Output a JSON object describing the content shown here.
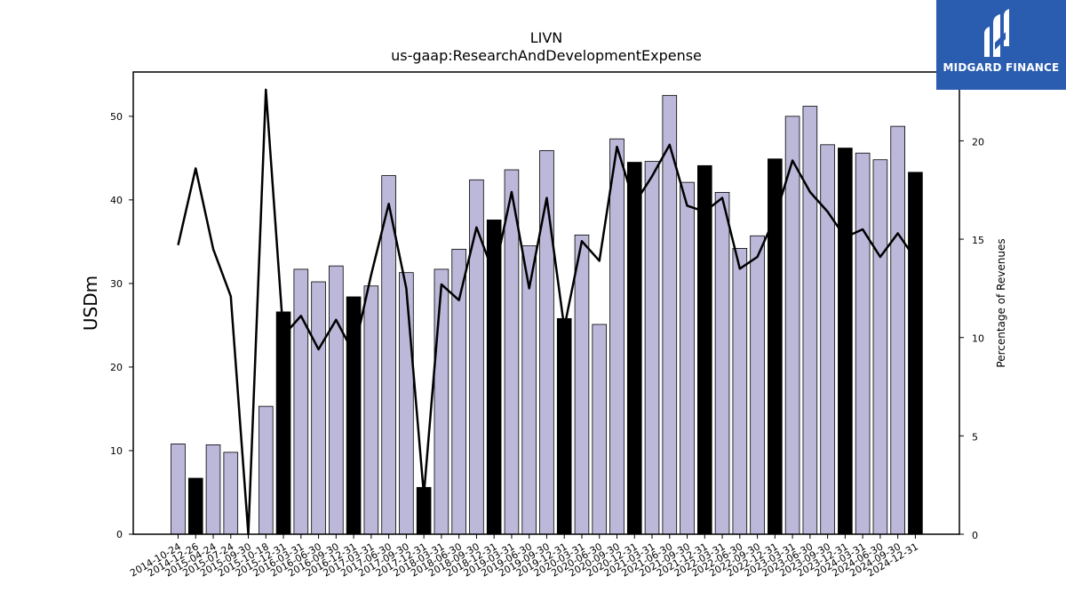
{
  "chart_data": {
    "type": "bar",
    "title": "LIVN",
    "subtitle": "us-gaap:ResearchAndDevelopmentExpense",
    "ylabel": "USDm",
    "ylabel_right": "Percentage of Revenues",
    "ylim": [
      0,
      55.3
    ],
    "ylim_right": [
      0,
      23.5
    ],
    "yticks": [
      0,
      10,
      20,
      30,
      40,
      50
    ],
    "yticks_right": [
      0,
      5,
      10,
      15,
      20
    ],
    "categories": [
      "2014-10-24",
      "2014-12-26",
      "2015-04-24",
      "2015-07-24",
      "2015-09-30",
      "2015-10-18",
      "2015-12-31",
      "2016-03-31",
      "2016-06-30",
      "2016-09-30",
      "2016-12-31",
      "2017-03-31",
      "2017-06-30",
      "2017-09-30",
      "2017-12-31",
      "2018-03-31",
      "2018-06-30",
      "2018-09-30",
      "2018-12-31",
      "2019-03-31",
      "2019-06-30",
      "2019-09-30",
      "2019-12-31",
      "2020-03-31",
      "2020-06-30",
      "2020-09-30",
      "2020-12-31",
      "2021-03-31",
      "2021-06-30",
      "2021-09-30",
      "2021-12-31",
      "2022-03-31",
      "2022-06-30",
      "2022-09-30",
      "2022-12-31",
      "2023-03-31",
      "2023-06-30",
      "2023-09-30",
      "2023-12-31",
      "2024-03-31",
      "2024-06-30",
      "2024-09-30",
      "2024-12-31"
    ],
    "series": [
      {
        "kind": "bar",
        "values": [
          10.8,
          6.7,
          10.7,
          9.8,
          0,
          15.3,
          26.6,
          31.7,
          30.2,
          32.1,
          28.4,
          29.7,
          42.9,
          31.3,
          5.6,
          31.7,
          34.1,
          42.4,
          37.6,
          43.6,
          34.5,
          45.9,
          25.8,
          35.8,
          25.1,
          47.3,
          44.5,
          44.6,
          52.5,
          42.1,
          44.1,
          40.9,
          34.2,
          35.7,
          44.9,
          50.0,
          51.2,
          46.6,
          46.2,
          45.6,
          44.8,
          48.8,
          43.3
        ],
        "highlight": [
          false,
          true,
          false,
          false,
          false,
          false,
          true,
          false,
          false,
          false,
          true,
          false,
          false,
          false,
          true,
          false,
          false,
          false,
          true,
          false,
          false,
          false,
          true,
          false,
          false,
          false,
          true,
          false,
          false,
          false,
          true,
          false,
          false,
          false,
          true,
          false,
          false,
          false,
          true,
          false,
          false,
          false,
          true
        ]
      },
      {
        "kind": "line",
        "axis": "right",
        "values": [
          14.7,
          18.6,
          14.5,
          12.1,
          0,
          22.6,
          10.1,
          11.1,
          9.4,
          10.9,
          9.2,
          13.2,
          16.8,
          12.5,
          2.0,
          12.7,
          11.9,
          15.6,
          13.2,
          17.4,
          12.5,
          17.1,
          10.5,
          14.9,
          13.9,
          19.7,
          16.8,
          18.2,
          19.8,
          16.7,
          16.4,
          17.1,
          13.5,
          14.1,
          16.1,
          19.0,
          17.4,
          16.4,
          15.1,
          15.5,
          14.1,
          15.3,
          14.0
        ]
      }
    ],
    "colors": {
      "bar": "#bcb8da",
      "bar_highlight": "#000000",
      "line": "#000000"
    }
  },
  "logo": {
    "text": "MIDGARD FINANCE",
    "background": "#2a5db0"
  }
}
